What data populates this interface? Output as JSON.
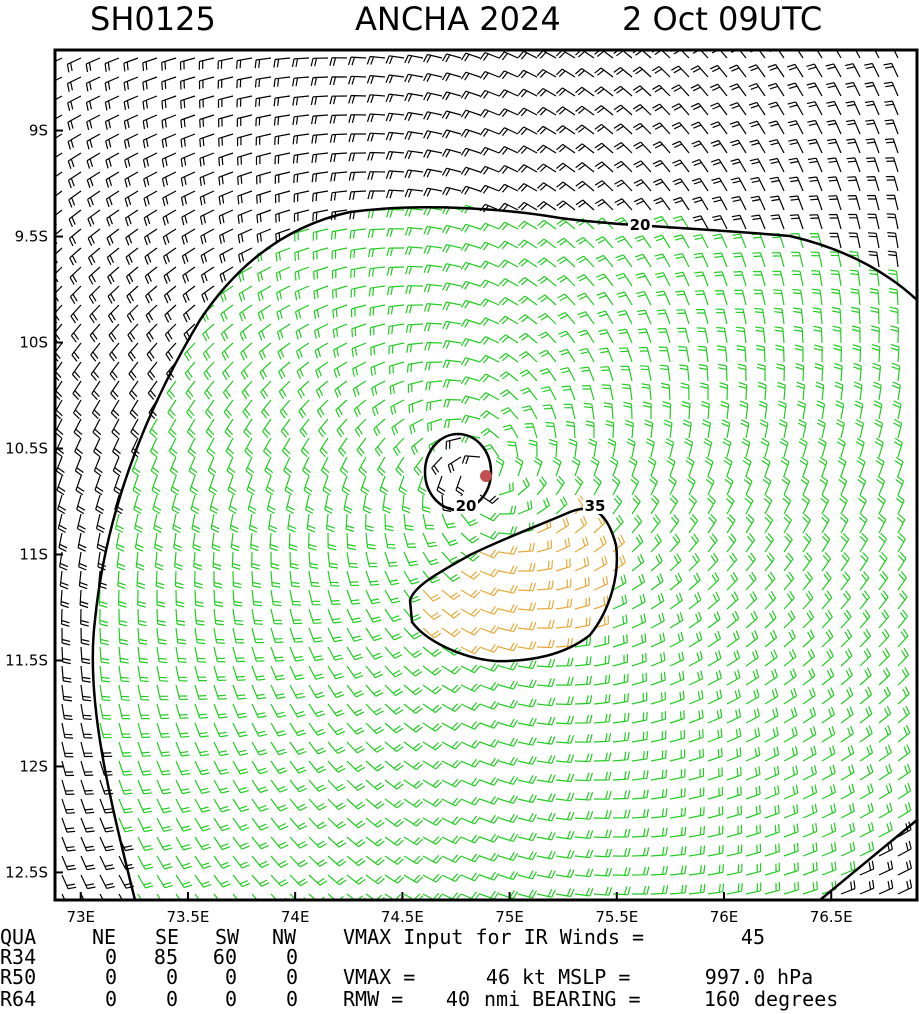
{
  "header": {
    "storm_id": "SH0125",
    "storm": "ANCHA 2024",
    "time": "2 Oct 09UTC"
  },
  "map": {
    "lonlim": [
      72.88,
      76.9
    ],
    "latlim": [
      -12.63,
      -8.62
    ],
    "lon_ticks": [
      {
        "value": 73,
        "label": "73E"
      },
      {
        "value": 73.5,
        "label": "73.5E"
      },
      {
        "value": 74,
        "label": "74E"
      },
      {
        "value": 74.5,
        "label": "74.5E"
      },
      {
        "value": 75,
        "label": "75E"
      },
      {
        "value": 75.5,
        "label": "75.5E"
      },
      {
        "value": 76,
        "label": "76E"
      },
      {
        "value": 76.5,
        "label": "76.5E"
      }
    ],
    "lat_ticks": [
      {
        "value": -9,
        "label": "9S"
      },
      {
        "value": -9.5,
        "label": "9.5S"
      },
      {
        "value": -10,
        "label": "10S"
      },
      {
        "value": -10.5,
        "label": "10.5S"
      },
      {
        "value": -11,
        "label": "11S"
      },
      {
        "value": -11.5,
        "label": "11.5S"
      },
      {
        "value": -12,
        "label": "12S"
      },
      {
        "value": -12.5,
        "label": "12.5S"
      }
    ],
    "center": {
      "lon": 74.89,
      "lat": -10.63
    },
    "contour_labels": [
      20,
      20,
      35
    ]
  },
  "table": {
    "rows": [
      [
        "QUA",
        "NE",
        "SE",
        "SW",
        "NW",
        "VMAX Input for IR Winds =",
        45
      ],
      [
        "R34",
        0,
        85,
        60,
        0
      ],
      [
        "R50",
        0,
        0,
        0,
        0,
        "VMAX =",
        46,
        "kt MSLP =",
        997.0,
        "hPa"
      ],
      [
        "R64",
        0,
        0,
        0,
        0,
        "RMW =",
        40,
        "nmi BEARING =",
        160,
        "degrees"
      ]
    ]
  }
}
